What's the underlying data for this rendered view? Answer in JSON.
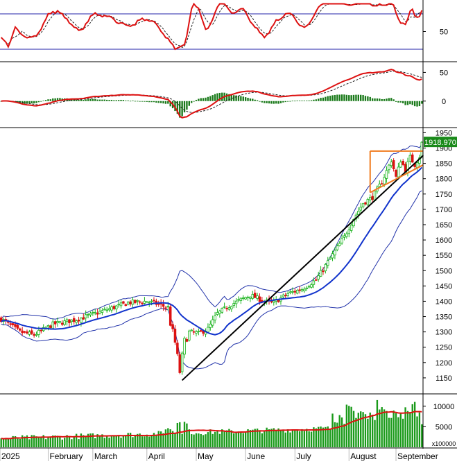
{
  "chart_data": [
    {
      "panel": "oscillator",
      "type": "line",
      "yticks": [
        50
      ],
      "reference_lines": [
        80,
        20
      ],
      "series": [
        {
          "role": "oscillator-main",
          "color": "#dd1111"
        },
        {
          "role": "oscillator-signal",
          "color": "#222222"
        }
      ]
    },
    {
      "panel": "macd",
      "type": "line+bar",
      "yticks": [
        50,
        0
      ],
      "series": [
        {
          "role": "macd-line",
          "color": "#dd1111"
        },
        {
          "role": "signal-line",
          "color": "#222222"
        },
        {
          "role": "histogram",
          "color": "#1a7a1a"
        }
      ]
    },
    {
      "panel": "price",
      "type": "candlestick",
      "ylim": [
        1100,
        1960
      ],
      "yticks": [
        1150,
        1200,
        1250,
        1300,
        1350,
        1400,
        1450,
        1500,
        1550,
        1600,
        1650,
        1700,
        1750,
        1800,
        1850,
        1900,
        1950
      ],
      "last_price_label": "1918.970",
      "start": 1342,
      "end": 1918.97,
      "overlays": [
        {
          "role": "moving-average",
          "color": "#1133cc"
        },
        {
          "role": "bollinger-bands",
          "color": "#2233aa"
        },
        {
          "role": "uptrend-line",
          "color": "#000000",
          "from": 1142,
          "to": 1876
        },
        {
          "role": "triangle-pattern",
          "color": "#f07a1e",
          "top": 1890,
          "bottom_from": 1755,
          "bottom_to": 1845
        }
      ]
    },
    {
      "panel": "volume",
      "type": "bar",
      "yticks": [
        5000,
        10000
      ],
      "unit_label": "x100000",
      "series": [
        {
          "role": "volume",
          "color": "#1a9a1a"
        },
        {
          "role": "volume-average",
          "color": "#dd1111"
        }
      ]
    }
  ],
  "x_axis": {
    "labels": [
      "2025",
      "February",
      "March",
      "April",
      "May",
      "June",
      "July",
      "August",
      "September"
    ]
  },
  "colors": {
    "up": "#17b21a",
    "down": "#dd1111",
    "grid": "#b8b8b8",
    "frame": "#000000"
  }
}
